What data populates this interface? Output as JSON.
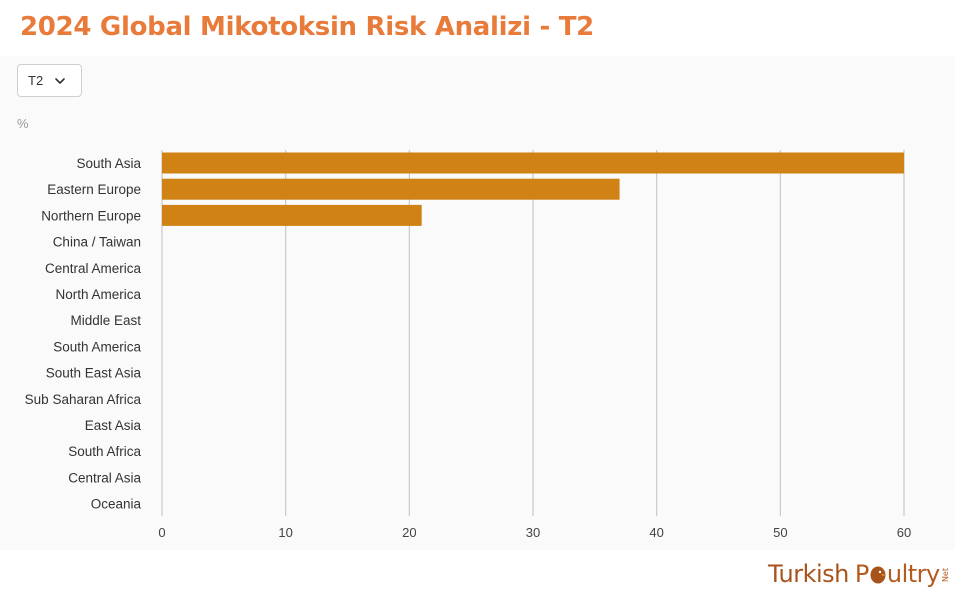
{
  "title": "2024 Global Mikotoksin Risk Analizi  - T2",
  "filter": {
    "selected": "T2"
  },
  "unit_label": "%",
  "logo": {
    "word1": "Turkish",
    "word2_a": "P",
    "word2_b": "ultry",
    "suffix": "Net"
  },
  "colors": {
    "bar": "#d08214",
    "title": "#e87b3a",
    "grid": "#c8c8c8"
  },
  "chart_data": {
    "type": "bar",
    "orientation": "horizontal",
    "categories": [
      "South Asia",
      "Eastern Europe",
      "Northern Europe",
      "China / Taiwan",
      "Central America",
      "North America",
      "Middle East",
      "South America",
      "South East Asia",
      "Sub Saharan Africa",
      "East Asia",
      "South Africa",
      "Central Asia",
      "Oceania"
    ],
    "values": [
      60,
      37,
      21,
      0,
      0,
      0,
      0,
      0,
      0,
      0,
      0,
      0,
      0,
      0
    ],
    "xlim": [
      0,
      60
    ],
    "xticks": [
      0,
      10,
      20,
      30,
      40,
      50,
      60
    ],
    "grid": true,
    "legend": "none"
  }
}
